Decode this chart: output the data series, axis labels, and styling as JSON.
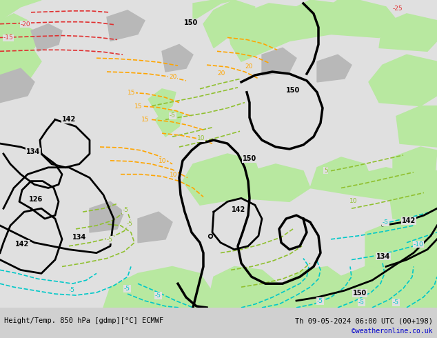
{
  "title_left": "Height/Temp. 850 hPa [gdmp][°C] ECMWF",
  "title_right": "Th 09-05-2024 06:00 UTC (00+198)",
  "credit": "©weatheronline.co.uk",
  "bg_color": "#d0d0d0",
  "land_green_color": "#b8e8a0",
  "sea_color": "#e0e0e0",
  "contour_black_color": "#000000",
  "contour_cyan_color": "#00c8c8",
  "contour_green_color": "#90c030",
  "contour_orange_color": "#ffa500",
  "contour_red_color": "#e03030",
  "fig_width": 6.34,
  "fig_height": 4.9,
  "dpi": 100
}
